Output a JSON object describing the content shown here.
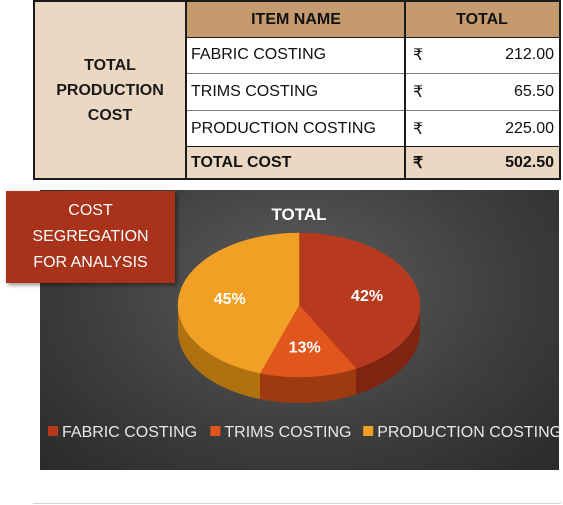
{
  "table": {
    "row_label": [
      "TOTAL",
      "PRODUCTION",
      "COST"
    ],
    "header": {
      "item": "ITEM NAME",
      "total": "TOTAL"
    },
    "currency": "₹",
    "rows": [
      {
        "name": "FABRIC COSTING",
        "amount": "212.00"
      },
      {
        "name": "TRIMS COSTING",
        "amount": "65.50"
      },
      {
        "name": "PRODUCTION COSTING",
        "amount": "225.00"
      }
    ],
    "total_row": {
      "name": "TOTAL COST",
      "amount": "502.50"
    }
  },
  "callout": {
    "lines": [
      "COST",
      "SEGREGATION",
      "FOR ANALYSIS"
    ]
  },
  "chart_data": {
    "type": "pie",
    "title": "TOTAL",
    "categories": [
      "FABRIC COSTING",
      "TRIMS COSTING",
      "PRODUCTION COSTING"
    ],
    "values": [
      212.0,
      65.5,
      225.0
    ],
    "labels": [
      "42%",
      "13%",
      "45%"
    ],
    "colors": [
      "#b83a1e",
      "#e0561c",
      "#f0a024"
    ],
    "dark_colors": [
      "#7e2410",
      "#9e3a10",
      "#b0720f"
    ],
    "legend_position": "bottom",
    "style": "3d"
  }
}
